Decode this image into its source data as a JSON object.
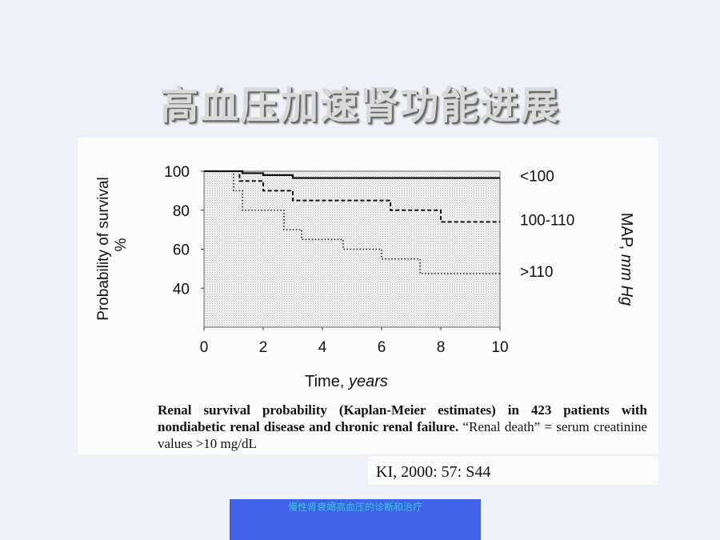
{
  "slide": {
    "title": "高血压加速肾功能进展"
  },
  "caption": {
    "bold_text": "Renal survival probability (Kaplan-Meier estimates) in 423 patients with nondiabetic renal disease and chronic renal failure.",
    "normal_text": " “Renal death” = serum creatinine values >10 mg/dL"
  },
  "citation": "KI, 2000: 57: S44",
  "footer": "慢性肾衰竭高血压的诊断和治疗",
  "chart_data": {
    "type": "line",
    "xlabel_main": "Time, ",
    "xlabel_italic": "years",
    "ylabel_line1": "Probability of survival",
    "ylabel_line2": "%",
    "legend_title_main": "MAP, ",
    "legend_title_italic": "mm Hg",
    "x_ticks": [
      "0",
      "2",
      "4",
      "6",
      "8",
      "10"
    ],
    "y_ticks": [
      "100",
      "80",
      "60",
      "40"
    ],
    "xlim": [
      0,
      10
    ],
    "ylim": [
      20,
      100
    ],
    "step": true,
    "series": [
      {
        "name": "<100",
        "style": "solid",
        "color": "#111111",
        "x": [
          0,
          1.3,
          2.0,
          3.0,
          10
        ],
        "y": [
          100,
          99,
          98,
          96.5,
          96.5
        ]
      },
      {
        "name": "100-110",
        "style": "dashed",
        "color": "#111111",
        "x": [
          0,
          1.2,
          2.0,
          3.0,
          6.3,
          8.0,
          10
        ],
        "y": [
          100,
          95,
          90,
          85,
          80,
          74,
          74
        ]
      },
      {
        "name": ">110",
        "style": "dotted",
        "color": "#222222",
        "x": [
          0,
          1.0,
          1.3,
          2.7,
          3.3,
          4.7,
          6.0,
          7.3,
          10
        ],
        "y": [
          100,
          90,
          80,
          70,
          65,
          60,
          55,
          47.5,
          47.5
        ]
      }
    ]
  }
}
